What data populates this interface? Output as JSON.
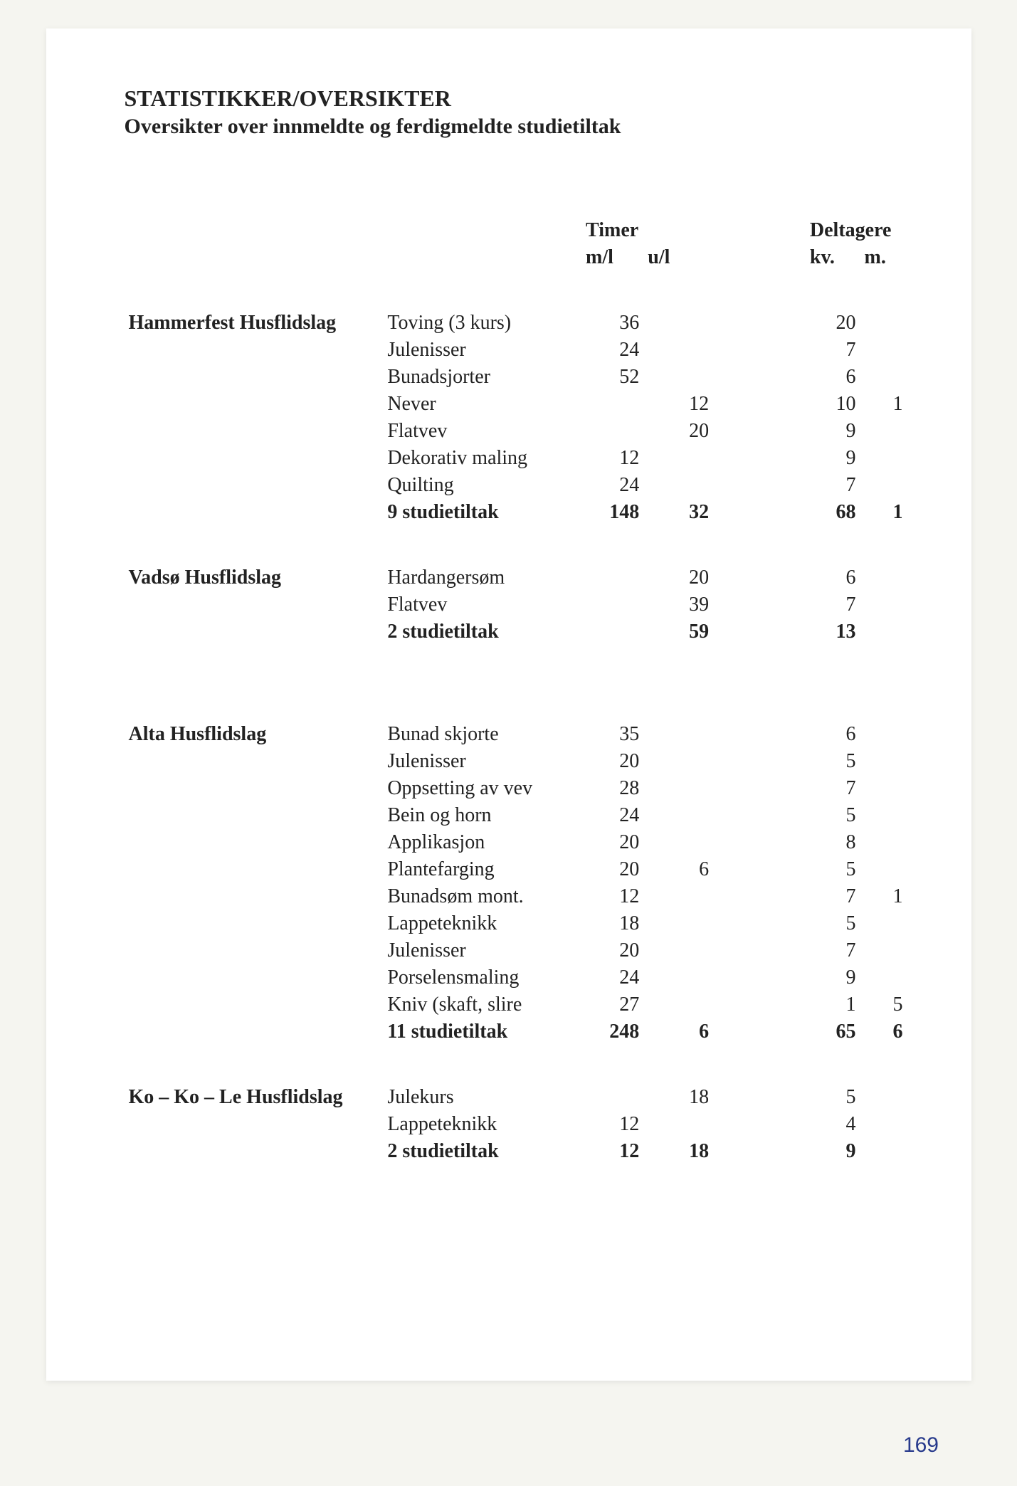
{
  "title": "STATISTIKKER/OVERSIKTER",
  "subtitle": "Oversikter over innmeldte og ferdigmeldte studietiltak",
  "page_number": "169",
  "headers": {
    "timer": "Timer",
    "deltagere": "Deltagere",
    "ml": "m/l",
    "ul": "u/l",
    "kv": "kv.",
    "m": "m."
  },
  "groups": [
    {
      "name": "Hammerfest Husflidslag",
      "rows": [
        {
          "course": "Toving  (3 kurs)",
          "ml": "36",
          "ul": "",
          "kv": "20",
          "m": ""
        },
        {
          "course": "Julenisser",
          "ml": "24",
          "ul": "",
          "kv": "7",
          "m": ""
        },
        {
          "course": "Bunadsjorter",
          "ml": "52",
          "ul": "",
          "kv": "6",
          "m": ""
        },
        {
          "course": "Never",
          "ml": "",
          "ul": "12",
          "kv": "10",
          "m": "1"
        },
        {
          "course": "Flatvev",
          "ml": "",
          "ul": "20",
          "kv": "9",
          "m": ""
        },
        {
          "course": "Dekorativ maling",
          "ml": "12",
          "ul": "",
          "kv": "9",
          "m": ""
        },
        {
          "course": "Quilting",
          "ml": "24",
          "ul": "",
          "kv": "7",
          "m": ""
        }
      ],
      "sum": {
        "course": "9 studietiltak",
        "ml": "148",
        "ul": "32",
        "kv": "68",
        "m": "1"
      }
    },
    {
      "name": "Vadsø Husflidslag",
      "rows": [
        {
          "course": "Hardangersøm",
          "ml": "",
          "ul": "20",
          "kv": "6",
          "m": ""
        },
        {
          "course": "Flatvev",
          "ml": "",
          "ul": "39",
          "kv": "7",
          "m": ""
        }
      ],
      "sum": {
        "course": "2 studietiltak",
        "ml": "",
        "ul": "59",
        "kv": "13",
        "m": ""
      }
    },
    {
      "name": "Alta Husflidslag",
      "rows": [
        {
          "course": "Bunad skjorte",
          "ml": "35",
          "ul": "",
          "kv": "6",
          "m": ""
        },
        {
          "course": "Julenisser",
          "ml": "20",
          "ul": "",
          "kv": "5",
          "m": ""
        },
        {
          "course": "Oppsetting av vev",
          "ml": "28",
          "ul": "",
          "kv": "7",
          "m": ""
        },
        {
          "course": "Bein og horn",
          "ml": "24",
          "ul": "",
          "kv": "5",
          "m": ""
        },
        {
          "course": "Applikasjon",
          "ml": "20",
          "ul": "",
          "kv": "8",
          "m": ""
        },
        {
          "course": "Plantefarging",
          "ml": "20",
          "ul": "6",
          "kv": "5",
          "m": ""
        },
        {
          "course": "Bunadsøm mont.",
          "ml": "12",
          "ul": "",
          "kv": "7",
          "m": "1"
        },
        {
          "course": "Lappeteknikk",
          "ml": "18",
          "ul": "",
          "kv": "5",
          "m": ""
        },
        {
          "course": "Julenisser",
          "ml": "20",
          "ul": "",
          "kv": "7",
          "m": ""
        },
        {
          "course": "Porselensmaling",
          "ml": "24",
          "ul": "",
          "kv": "9",
          "m": ""
        },
        {
          "course": "Kniv (skaft, slire",
          "ml": "27",
          "ul": "",
          "kv": "1",
          "m": "5"
        }
      ],
      "sum": {
        "course": "11 studietiltak",
        "ml": "248",
        "ul": "6",
        "kv": "65",
        "m": "6"
      }
    },
    {
      "name": "Ko – Ko – Le Husflidslag",
      "rows": [
        {
          "course": "Julekurs",
          "ml": "",
          "ul": "18",
          "kv": "5",
          "m": ""
        },
        {
          "course": "Lappeteknikk",
          "ml": "12",
          "ul": "",
          "kv": "4",
          "m": ""
        }
      ],
      "sum": {
        "course": "2 studietiltak",
        "ml": "12",
        "ul": "18",
        "kv": "9",
        "m": ""
      }
    }
  ]
}
